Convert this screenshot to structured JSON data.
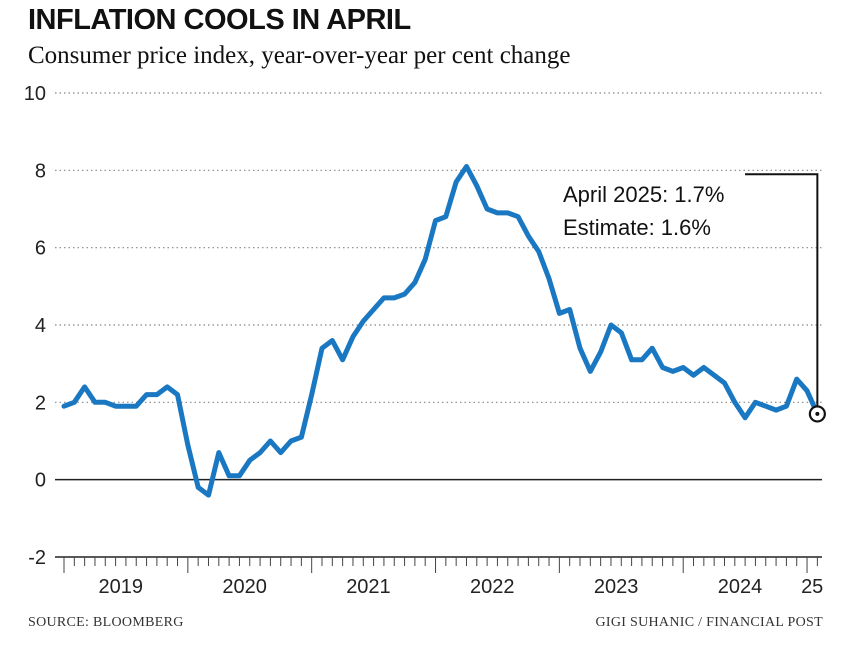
{
  "title": "INFLATION COOLS IN APRIL",
  "subtitle": "Consumer price index, year-over-year per cent change",
  "source": "SOURCE: BLOOMBERG",
  "credit": "GIGI SUHANIC / FINANCIAL POST",
  "colors": {
    "line": "#1a78c2",
    "grid": "#888888",
    "text": "#222222"
  },
  "chart_data": {
    "type": "line",
    "ylim": [
      -2,
      10
    ],
    "yticks": [
      -2,
      0,
      2,
      4,
      6,
      8,
      10
    ],
    "x_start": "2019-01",
    "xlabels": [
      "2019",
      "2020",
      "2021",
      "2022",
      "2023",
      "2024",
      "25"
    ],
    "annotation": [
      "April 2025: 1.7%",
      "Estimate: 1.6%"
    ],
    "values": [
      1.9,
      2.0,
      2.4,
      2.0,
      2.0,
      1.9,
      1.9,
      1.9,
      2.2,
      2.2,
      2.4,
      2.2,
      0.9,
      -0.2,
      -0.4,
      0.7,
      0.1,
      0.1,
      0.5,
      0.7,
      1.0,
      0.7,
      1.0,
      1.1,
      2.2,
      3.4,
      3.6,
      3.1,
      3.7,
      4.1,
      4.4,
      4.7,
      4.7,
      4.8,
      5.1,
      5.7,
      6.7,
      6.8,
      7.7,
      8.1,
      7.6,
      7.0,
      6.9,
      6.9,
      6.8,
      6.3,
      5.9,
      5.2,
      4.3,
      4.4,
      3.4,
      2.8,
      3.3,
      4.0,
      3.8,
      3.1,
      3.1,
      3.4,
      2.9,
      2.8,
      2.9,
      2.7,
      2.9,
      2.7,
      2.5,
      2.0,
      1.6,
      2.0,
      1.9,
      1.8,
      1.9,
      2.6,
      2.3,
      1.7
    ]
  }
}
